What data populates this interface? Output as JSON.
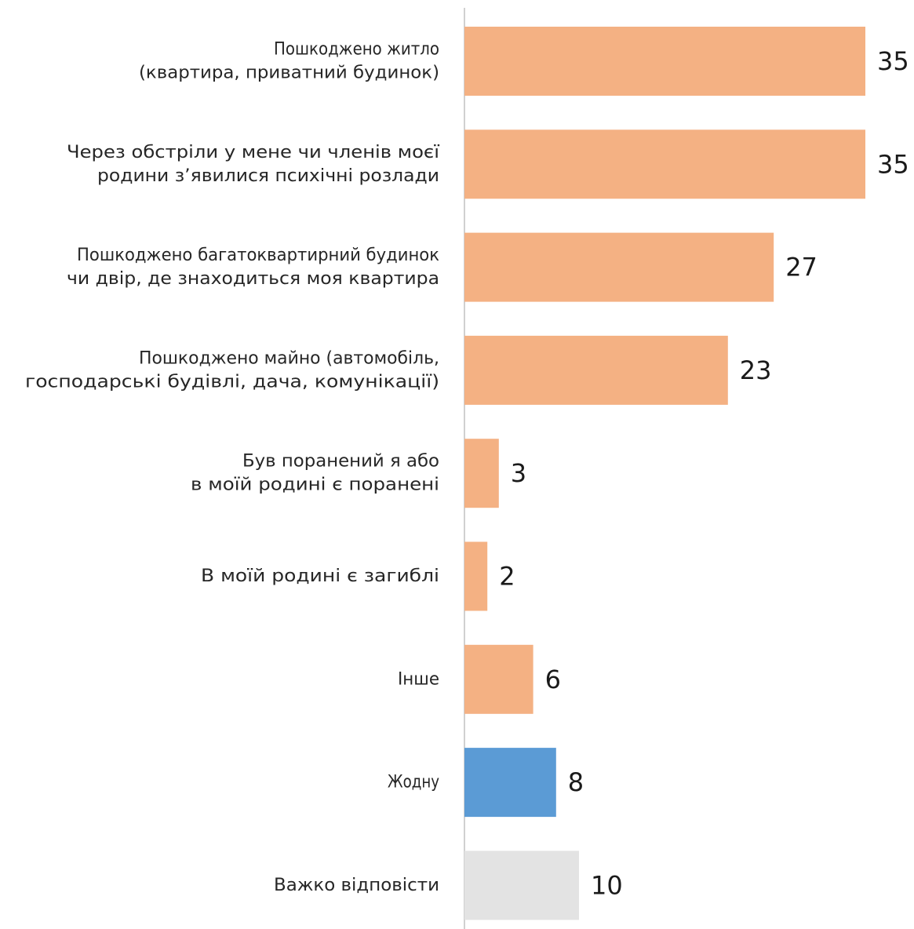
{
  "chart_data": {
    "type": "bar",
    "orientation": "horizontal",
    "categories": [
      [
        "Пошкоджено житло",
        "(квартира, приватний будинок)"
      ],
      [
        "Через обстріли у мене чи членів моєї",
        "родини з’явилися психічні розлади"
      ],
      [
        "Пошкоджено багатоквартирний будинок",
        "чи двір, де знаходиться моя квартира"
      ],
      [
        "Пошкоджено майно (автомобіль,",
        "господарські будівлі, дача, комунікації)"
      ],
      [
        "Був поранений я або",
        "в моїй родині є поранені"
      ],
      [
        "В моїй родині є загиблі"
      ],
      [
        "Інше"
      ],
      [
        "Жодну"
      ],
      [
        "Важко відповісти"
      ]
    ],
    "values": [
      35,
      35,
      27,
      23,
      3,
      2,
      6,
      8,
      10
    ],
    "bar_colors": [
      "#f4b183",
      "#f4b183",
      "#f4b183",
      "#f4b183",
      "#f4b183",
      "#f4b183",
      "#f4b183",
      "#5b9bd5",
      "#e3e3e3"
    ],
    "xlim": [
      0,
      35
    ],
    "grid": false,
    "legend": "none"
  },
  "colors": {
    "axis": "#d0d0d0",
    "text": "#262626"
  }
}
